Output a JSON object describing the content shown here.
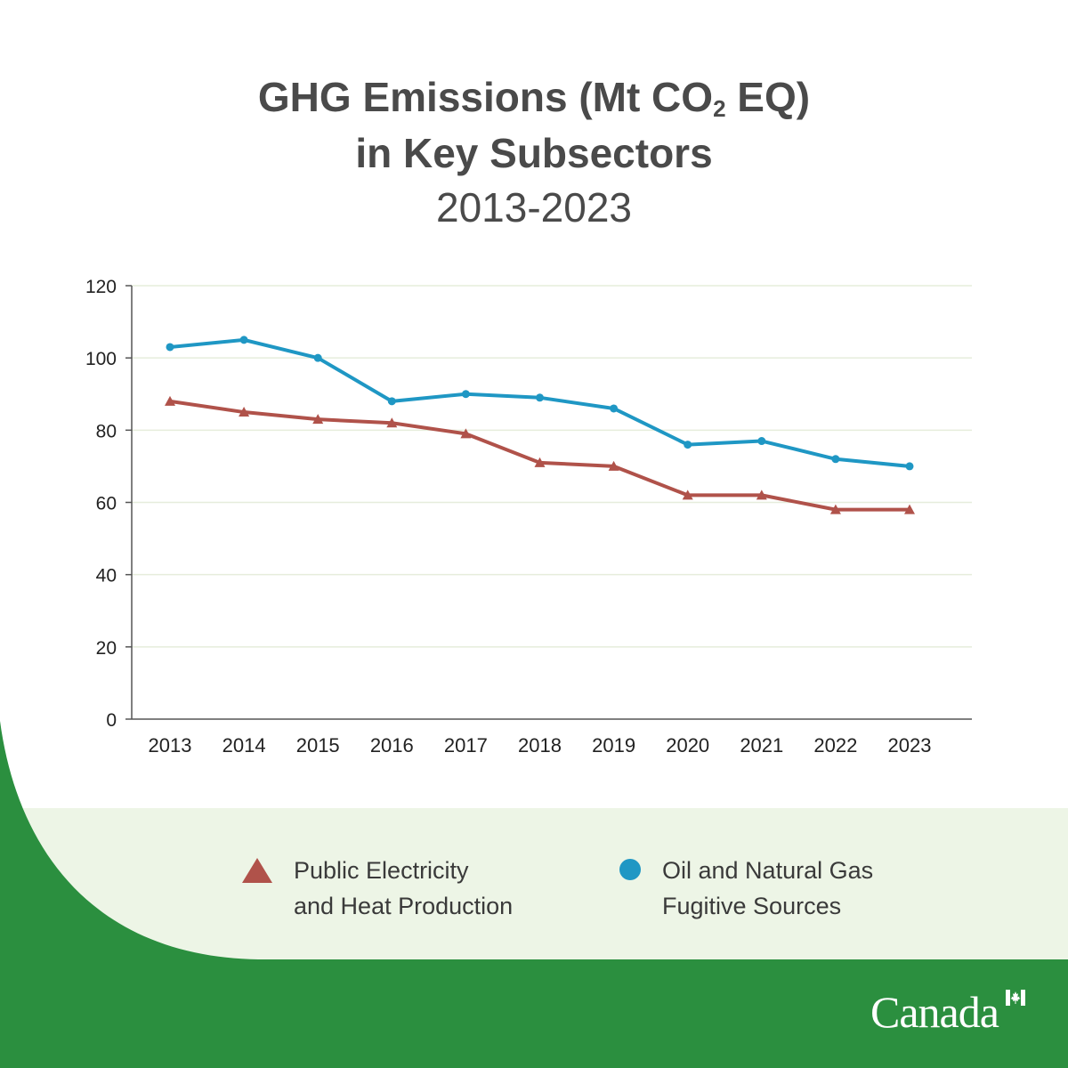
{
  "title": {
    "line1_a": "GHG Emissions (Mt CO",
    "line1_sub": "2",
    "line1_b": " EQ)",
    "line2": "in Key Subsectors",
    "line3": "2013-2023"
  },
  "legend": {
    "series1_line1": "Public Electricity",
    "series1_line2": "and Heat Production",
    "series2_line1": "Oil and Natural Gas",
    "series2_line2": "Fugitive Sources"
  },
  "brand": {
    "wordmark": "Canada"
  },
  "colors": {
    "green": "#2b8f3f",
    "light_green": "#edf5e6",
    "series1": "#b0524a",
    "series2": "#1f97c4",
    "text": "#4a4a4a"
  },
  "chart_data": {
    "type": "line",
    "title": "GHG Emissions (Mt CO2 EQ) in Key Subsectors 2013-2023",
    "xlabel": "",
    "ylabel": "",
    "categories": [
      "2013",
      "2014",
      "2015",
      "2016",
      "2017",
      "2018",
      "2019",
      "2020",
      "2021",
      "2022",
      "2023"
    ],
    "ylim": [
      0,
      120
    ],
    "yticks": [
      0,
      20,
      40,
      60,
      80,
      100,
      120
    ],
    "grid": true,
    "legend_position": "bottom",
    "series": [
      {
        "name": "Public Electricity and Heat Production",
        "marker": "triangle",
        "color": "#b0524a",
        "values": [
          88,
          85,
          83,
          82,
          79,
          71,
          70,
          62,
          62,
          58,
          58
        ]
      },
      {
        "name": "Oil and Natural Gas Fugitive Sources",
        "marker": "circle",
        "color": "#1f97c4",
        "values": [
          103,
          105,
          100,
          88,
          90,
          89,
          86,
          76,
          77,
          72,
          70
        ]
      }
    ]
  }
}
